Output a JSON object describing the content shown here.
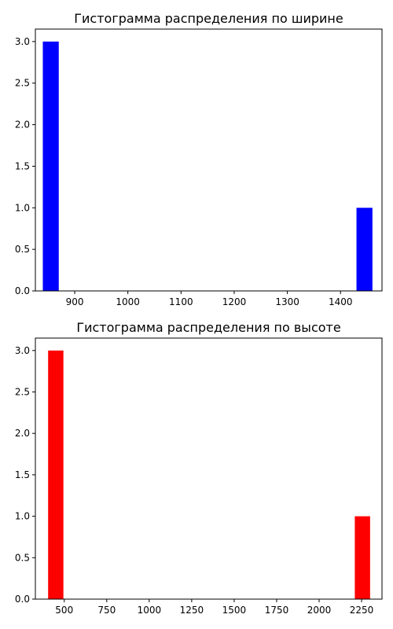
{
  "chart_data": [
    {
      "type": "bar",
      "title": "Гистограмма распределения по ширине",
      "xlabel": "",
      "ylabel": "",
      "color": "#0000ff",
      "xlim": [
        826,
        1478
      ],
      "ylim": [
        0,
        3.15
      ],
      "xticks": [
        900,
        1000,
        1100,
        1200,
        1300,
        1400
      ],
      "xtick_labels": [
        "900",
        "1000",
        "1100",
        "1200",
        "1300",
        "1400"
      ],
      "yticks": [
        0.0,
        0.5,
        1.0,
        1.5,
        2.0,
        2.5,
        3.0
      ],
      "ytick_labels": [
        "0.0",
        "0.5",
        "1.0",
        "1.5",
        "2.0",
        "2.5",
        "3.0"
      ],
      "bins": [
        {
          "x0": 840,
          "x1": 870,
          "count": 3
        },
        {
          "x0": 1430,
          "x1": 1460,
          "count": 1
        }
      ],
      "grid": false,
      "legend": "none"
    },
    {
      "type": "bar",
      "title": "Гистограмма распределения по высоте",
      "xlabel": "",
      "ylabel": "",
      "color": "#ff0000",
      "xlim": [
        330,
        2370
      ],
      "ylim": [
        0,
        3.15
      ],
      "xticks": [
        500,
        750,
        1000,
        1250,
        1500,
        1750,
        2000,
        2250
      ],
      "xtick_labels": [
        "500",
        "750",
        "1000",
        "1250",
        "1500",
        "1750",
        "2000",
        "2250"
      ],
      "yticks": [
        0.0,
        0.5,
        1.0,
        1.5,
        2.0,
        2.5,
        3.0
      ],
      "ytick_labels": [
        "0.0",
        "0.5",
        "1.0",
        "1.5",
        "2.0",
        "2.5",
        "3.0"
      ],
      "bins": [
        {
          "x0": 405,
          "x1": 495,
          "count": 3
        },
        {
          "x0": 2210,
          "x1": 2300,
          "count": 1
        }
      ],
      "grid": false,
      "legend": "none"
    }
  ]
}
